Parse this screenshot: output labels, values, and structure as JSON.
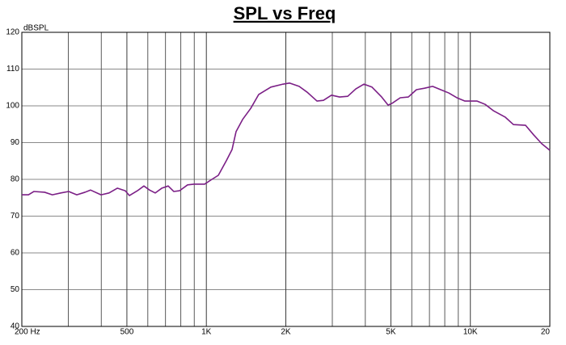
{
  "chart_data": {
    "type": "line",
    "title": "SPL vs Freq",
    "ylabel": "dBSPL",
    "log_x": true,
    "grid": true,
    "xlim": [
      200,
      20000
    ],
    "ylim": [
      40,
      120
    ],
    "xticks": [
      {
        "value": 200,
        "label": "200 Hz"
      },
      500,
      {
        "value": 1000,
        "label": "1K"
      },
      {
        "value": 2000,
        "label": "2K"
      },
      {
        "value": 5000,
        "label": "5K"
      },
      {
        "value": 10000,
        "label": "10K"
      },
      {
        "value": 20000,
        "label": "20"
      }
    ],
    "xgrid_minor": [
      300,
      400,
      600,
      700,
      800,
      900,
      3000,
      4000,
      6000,
      7000,
      8000,
      9000
    ],
    "yticks": [
      40,
      50,
      60,
      70,
      80,
      90,
      100,
      110,
      120
    ],
    "series": [
      {
        "color": "#7b1f86",
        "x": [
          200,
          212,
          222,
          244,
          261,
          281,
          301,
          323,
          347,
          364,
          399,
          428,
          460,
          493,
          511,
          548,
          580,
          609,
          640,
          678,
          717,
          753,
          791,
          849,
          898,
          985,
          1049,
          1110,
          1191,
          1251,
          1296,
          1372,
          1472,
          1579,
          1755,
          1951,
          2064,
          2246,
          2411,
          2624,
          2776,
          2978,
          3197,
          3431,
          3681,
          3950,
          4239,
          4614,
          4880,
          5056,
          5426,
          5822,
          6248,
          6704,
          7194,
          7720,
          8284,
          8890,
          9540,
          10606,
          11378,
          12210,
          13570,
          14562,
          16186,
          17370,
          18640,
          20000
        ],
        "values": [
          75.8,
          75.8,
          76.7,
          76.5,
          75.8,
          76.3,
          76.7,
          75.8,
          76.5,
          77.1,
          75.8,
          76.3,
          77.6,
          76.9,
          75.6,
          76.9,
          78.2,
          77.1,
          76.3,
          77.6,
          78.2,
          76.7,
          76.9,
          78.5,
          78.7,
          78.7,
          80.0,
          81.1,
          85.1,
          88.1,
          93.0,
          96.3,
          99.3,
          103.1,
          105.1,
          105.9,
          106.2,
          105.3,
          103.7,
          101.3,
          101.5,
          102.9,
          102.4,
          102.6,
          104.6,
          105.9,
          105.1,
          102.4,
          100.2,
          100.7,
          102.2,
          102.4,
          104.4,
          104.8,
          105.3,
          104.4,
          103.5,
          102.2,
          101.3,
          101.3,
          100.4,
          98.7,
          96.9,
          94.9,
          94.7,
          92.1,
          89.7,
          87.9
        ]
      }
    ]
  }
}
